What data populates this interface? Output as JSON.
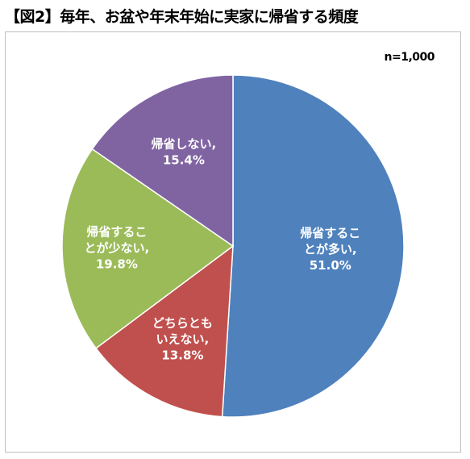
{
  "title": "【図2】毎年、お盆や年末年始に実家に帰省する頻度",
  "sample_note": "n=1,000",
  "chart_data": {
    "type": "pie",
    "start_angle_deg": 0,
    "direction": "clockwise",
    "slices": [
      {
        "lines": [
          "帰省するこ",
          "とが多い,",
          "51.0%"
        ],
        "value": 51.0,
        "color": "#4f81bd"
      },
      {
        "lines": [
          "どちらとも",
          "いえない,",
          "13.8%"
        ],
        "value": 13.8,
        "color": "#c0504d"
      },
      {
        "lines": [
          "帰省するこ",
          "とが少ない,",
          "19.8%"
        ],
        "value": 19.8,
        "color": "#9bbb59"
      },
      {
        "lines": [
          "帰省しない,",
          "15.4%"
        ],
        "value": 15.4,
        "color": "#8064a2"
      }
    ]
  }
}
